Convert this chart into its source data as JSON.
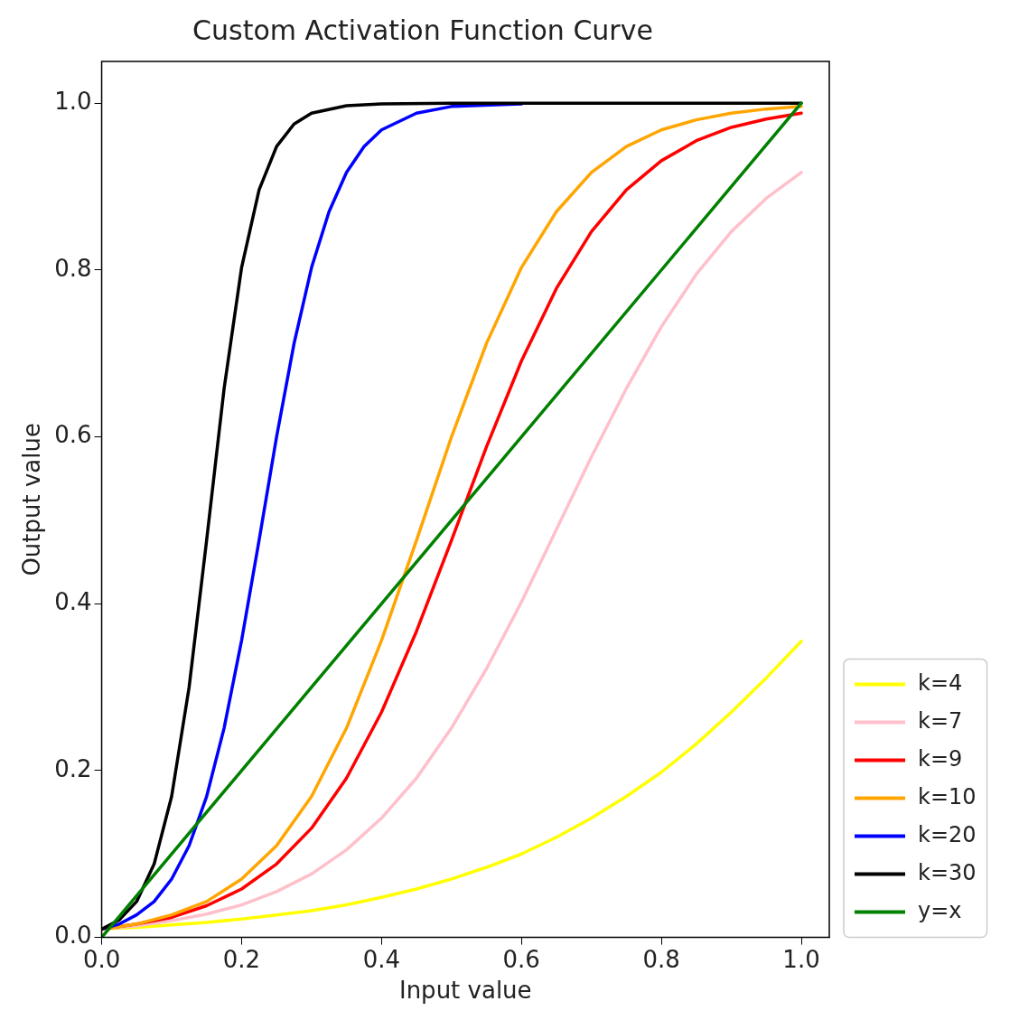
{
  "chart_data": {
    "type": "line",
    "title": "Custom Activation Function Curve",
    "xlabel": "Input value",
    "ylabel": "Output value",
    "xlim": [
      0,
      1.04
    ],
    "ylim": [
      0,
      1.05
    ],
    "xticks": [
      {
        "value": 0,
        "label": "0.0"
      },
      {
        "value": 0.2,
        "label": "0.2"
      },
      {
        "value": 0.4,
        "label": "0.4"
      },
      {
        "value": 0.6,
        "label": "0.6"
      },
      {
        "value": 0.8,
        "label": "0.8"
      },
      {
        "value": 1,
        "label": "1.0"
      }
    ],
    "yticks": [
      {
        "value": 0,
        "label": "0.0"
      },
      {
        "value": 0.2,
        "label": "0.2"
      },
      {
        "value": 0.4,
        "label": "0.4"
      },
      {
        "value": 0.6,
        "label": "0.6"
      },
      {
        "value": 0.8,
        "label": "0.8"
      },
      {
        "value": 1,
        "label": "1.0"
      }
    ],
    "grid": false,
    "legend": "right",
    "marker": "none",
    "line_style": "solid",
    "series": [
      {
        "name": "k=4",
        "color": "#ffff00",
        "x": [
          0,
          0.05,
          0.1,
          0.15,
          0.2,
          0.25,
          0.3,
          0.35,
          0.4,
          0.45,
          0.5,
          0.55,
          0.6,
          0.65,
          0.7,
          0.75,
          0.8,
          0.85,
          0.9,
          0.95,
          1
        ],
        "values": [
          0.01,
          0.012,
          0.015,
          0.018,
          0.022,
          0.027,
          0.032,
          0.039,
          0.048,
          0.058,
          0.07,
          0.084,
          0.1,
          0.12,
          0.143,
          0.169,
          0.198,
          0.232,
          0.27,
          0.311,
          0.355
        ]
      },
      {
        "name": "k=7",
        "color": "#ffc0cb",
        "x": [
          0,
          0.05,
          0.1,
          0.15,
          0.2,
          0.25,
          0.3,
          0.35,
          0.4,
          0.45,
          0.5,
          0.55,
          0.6,
          0.65,
          0.7,
          0.75,
          0.8,
          0.85,
          0.9,
          0.95,
          1
        ],
        "values": [
          0.01,
          0.014,
          0.02,
          0.028,
          0.039,
          0.055,
          0.076,
          0.105,
          0.143,
          0.191,
          0.251,
          0.322,
          0.402,
          0.489,
          0.576,
          0.658,
          0.732,
          0.795,
          0.846,
          0.886,
          0.917
        ]
      },
      {
        "name": "k=9",
        "color": "#ff0000",
        "x": [
          0,
          0.05,
          0.1,
          0.15,
          0.2,
          0.25,
          0.3,
          0.35,
          0.4,
          0.45,
          0.5,
          0.55,
          0.6,
          0.65,
          0.7,
          0.75,
          0.8,
          0.85,
          0.9,
          0.95,
          1
        ],
        "values": [
          0.01,
          0.016,
          0.024,
          0.038,
          0.058,
          0.088,
          0.131,
          0.191,
          0.27,
          0.367,
          0.476,
          0.588,
          0.691,
          0.778,
          0.846,
          0.896,
          0.931,
          0.955,
          0.971,
          0.981,
          0.988
        ]
      },
      {
        "name": "k=10",
        "color": "#ffa500",
        "x": [
          0,
          0.05,
          0.1,
          0.15,
          0.2,
          0.25,
          0.3,
          0.35,
          0.4,
          0.45,
          0.5,
          0.55,
          0.6,
          0.65,
          0.7,
          0.75,
          0.8,
          0.85,
          0.9,
          0.95,
          1
        ],
        "values": [
          0.01,
          0.016,
          0.027,
          0.043,
          0.07,
          0.11,
          0.169,
          0.251,
          0.356,
          0.476,
          0.6,
          0.712,
          0.803,
          0.87,
          0.917,
          0.948,
          0.968,
          0.98,
          0.988,
          0.993,
          0.996
        ]
      },
      {
        "name": "k=20",
        "color": "#0000ff",
        "x": [
          0,
          0.025,
          0.05,
          0.075,
          0.1,
          0.125,
          0.15,
          0.175,
          0.2,
          0.225,
          0.25,
          0.275,
          0.3,
          0.325,
          0.35,
          0.375,
          0.4,
          0.45,
          0.5,
          0.6
        ],
        "values": [
          0.01,
          0.016,
          0.027,
          0.043,
          0.07,
          0.11,
          0.169,
          0.251,
          0.356,
          0.476,
          0.6,
          0.712,
          0.803,
          0.87,
          0.917,
          0.948,
          0.968,
          0.988,
          0.996,
          0.999
        ]
      },
      {
        "name": "k=30",
        "color": "#000000",
        "x": [
          0,
          0.025,
          0.05,
          0.075,
          0.1,
          0.125,
          0.15,
          0.175,
          0.2,
          0.225,
          0.25,
          0.275,
          0.3,
          0.35,
          0.4,
          0.5,
          1
        ],
        "values": [
          0.01,
          0.021,
          0.043,
          0.088,
          0.169,
          0.3,
          0.476,
          0.658,
          0.803,
          0.896,
          0.948,
          0.975,
          0.988,
          0.997,
          0.999,
          1,
          1
        ]
      },
      {
        "name": "y=x",
        "color": "#008000",
        "x": [
          0,
          1
        ],
        "values": [
          0,
          1
        ]
      }
    ]
  }
}
